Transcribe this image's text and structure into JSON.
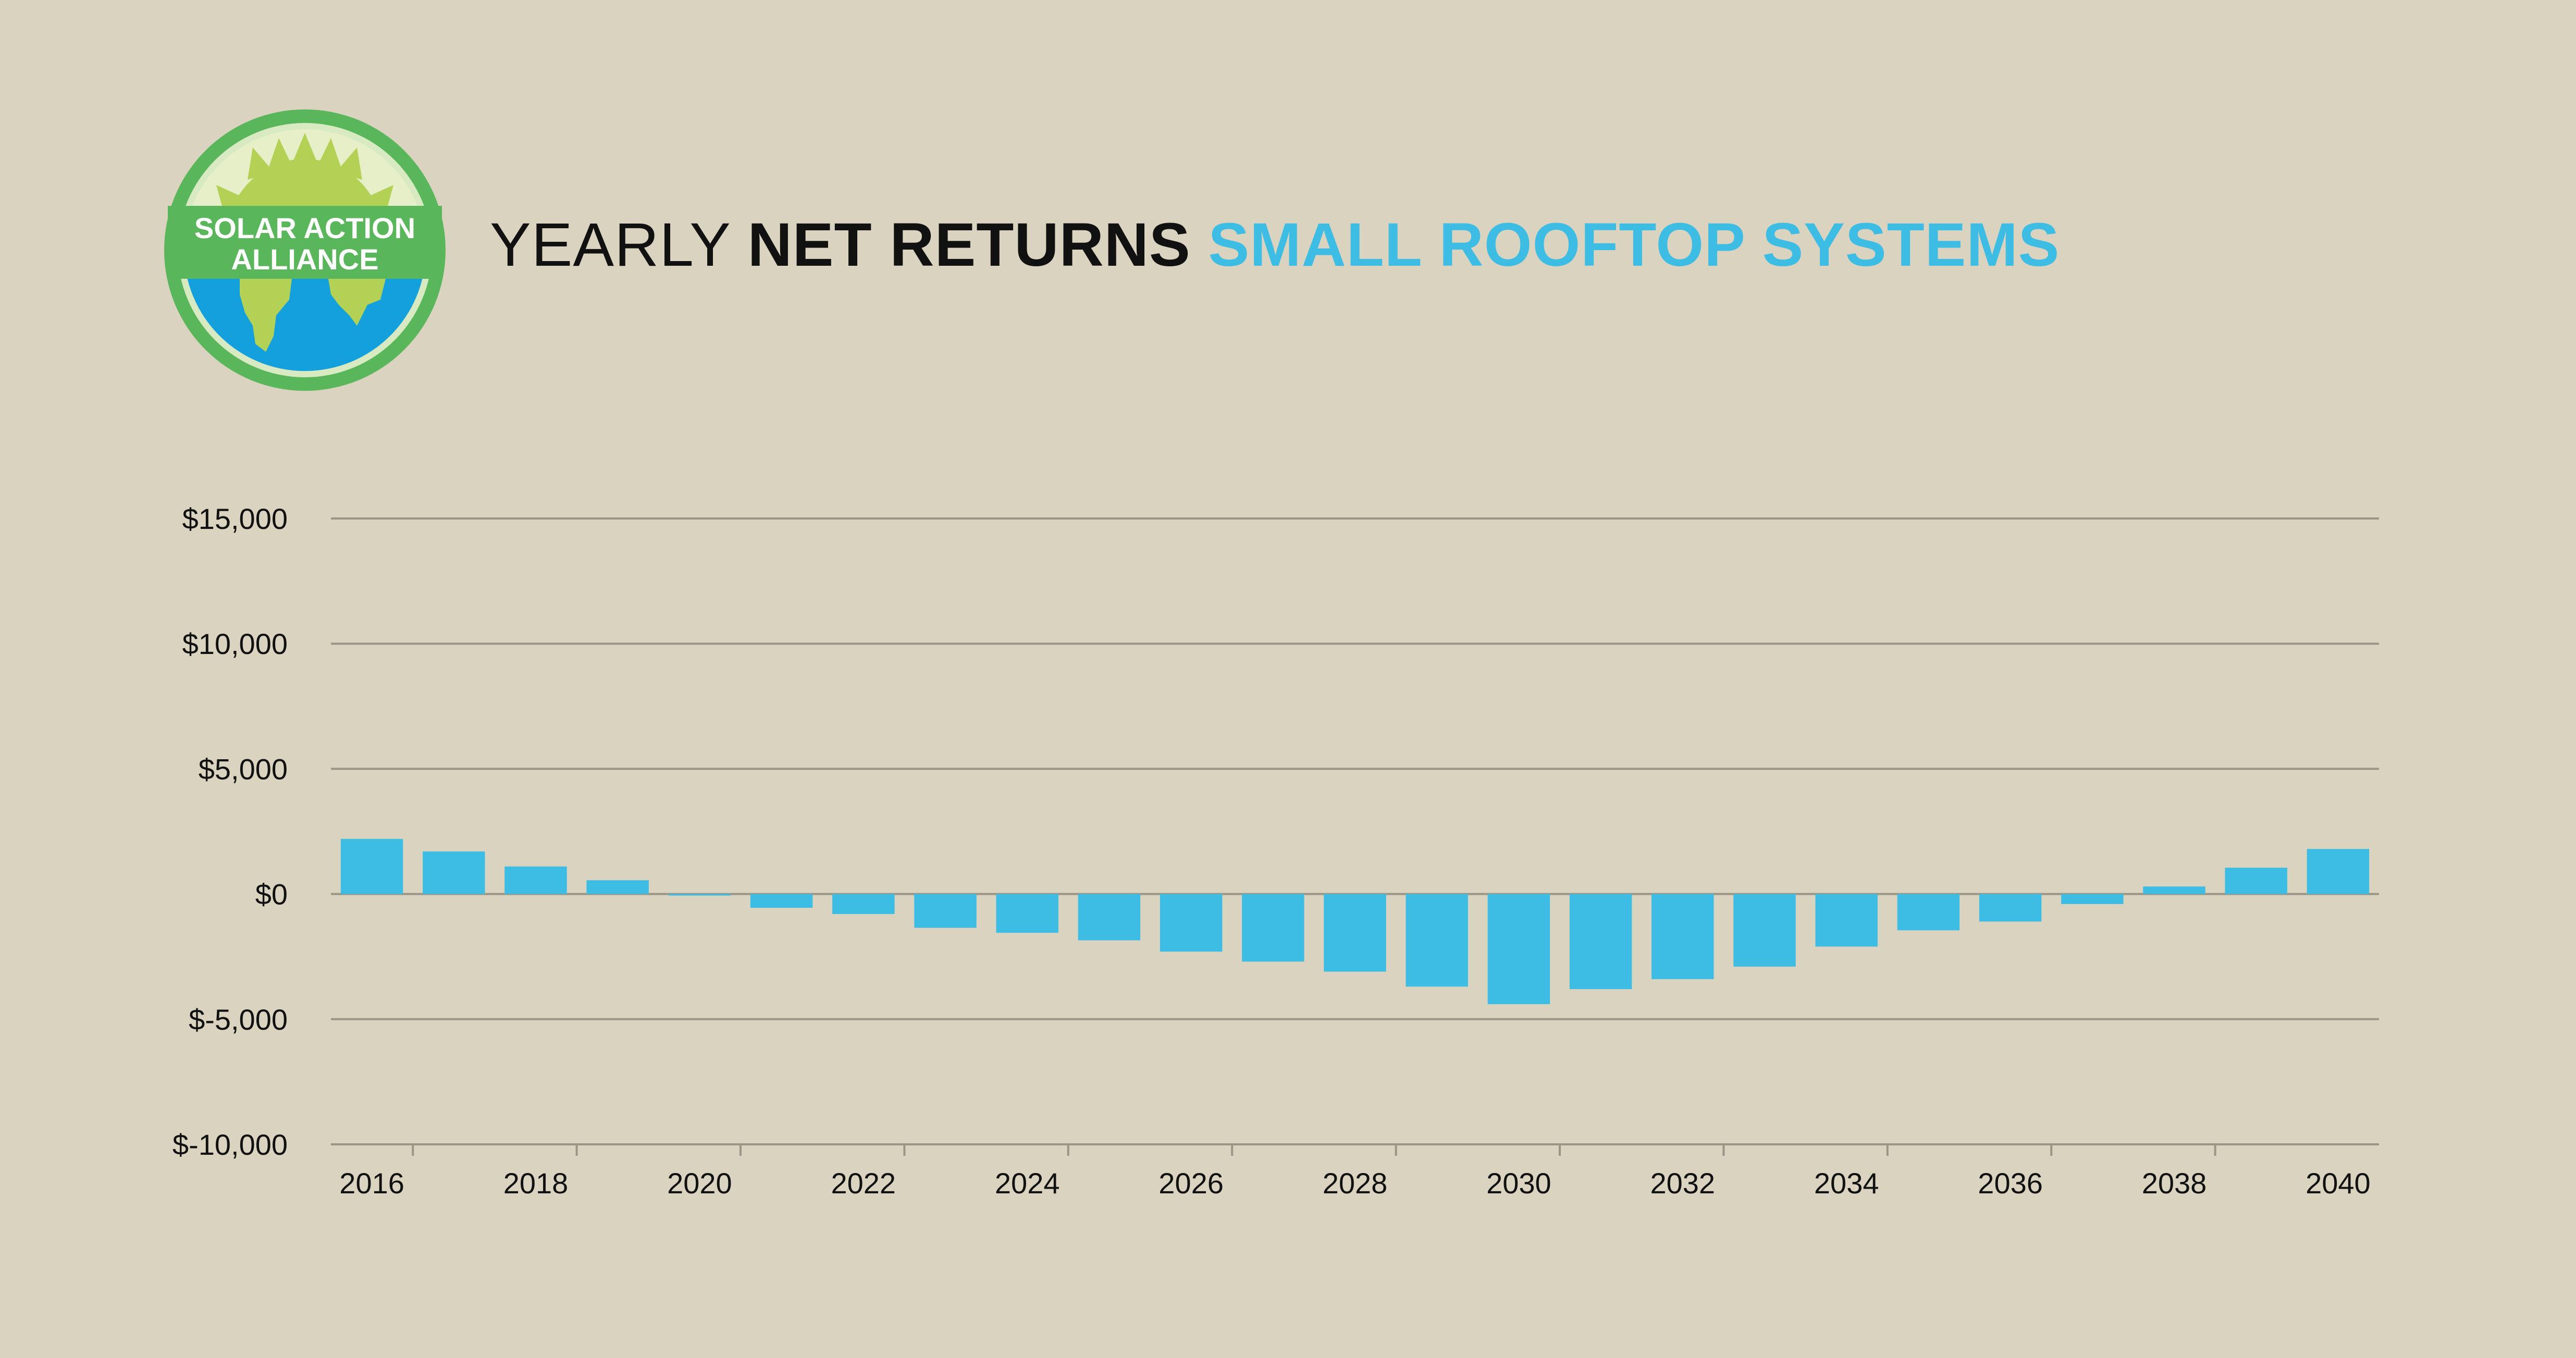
{
  "colors": {
    "background": "#d9d3c0",
    "bar": "#3dbde4",
    "gridline": "#9a9584",
    "logo_ring": "#5ab65a",
    "logo_sun": "#b3d154",
    "logo_earth_sea": "#13a0dc",
    "logo_banner": "#5ab65a",
    "title_accent": "#3dbde4"
  },
  "logo": {
    "line1": "SOLAR ACTION",
    "line2": "ALLIANCE",
    "icon": "sun-over-earth-icon"
  },
  "title": {
    "part1": "YEARLY ",
    "part2": "NET RETURNS ",
    "part3": "SMALL ROOFTOP SYSTEMS"
  },
  "chart_data": {
    "type": "bar",
    "title": "YEARLY NET RETURNS SMALL ROOFTOP SYSTEMS",
    "xlabel": "",
    "ylabel": "",
    "ylim": [
      -10000,
      15000
    ],
    "yticks": [
      15000,
      10000,
      5000,
      0,
      -5000,
      -10000
    ],
    "ytick_labels": [
      "$15,000",
      "$10,000",
      "$5,000",
      "$0",
      "$-5,000",
      "$-10,000"
    ],
    "categories": [
      "2016",
      "2017",
      "2018",
      "2019",
      "2020",
      "2021",
      "2022",
      "2023",
      "2024",
      "2025",
      "2026",
      "2027",
      "2028",
      "2029",
      "2030",
      "2031",
      "2032",
      "2033",
      "2034",
      "2035",
      "2036",
      "2037",
      "2038",
      "2039",
      "2040"
    ],
    "xtick_labels": [
      "2016",
      "2018",
      "2020",
      "2022",
      "2024",
      "2026",
      "2028",
      "2030",
      "2032",
      "2034",
      "2036",
      "2038",
      "2040"
    ],
    "values": [
      2200,
      1700,
      1100,
      550,
      -50,
      -550,
      -800,
      -1350,
      -1550,
      -1850,
      -2300,
      -2700,
      -3100,
      -3700,
      -4400,
      -3800,
      -3400,
      -2900,
      -2100,
      -1450,
      -1100,
      -400,
      300,
      1050,
      1800
    ],
    "grid": true,
    "legend": "none"
  }
}
